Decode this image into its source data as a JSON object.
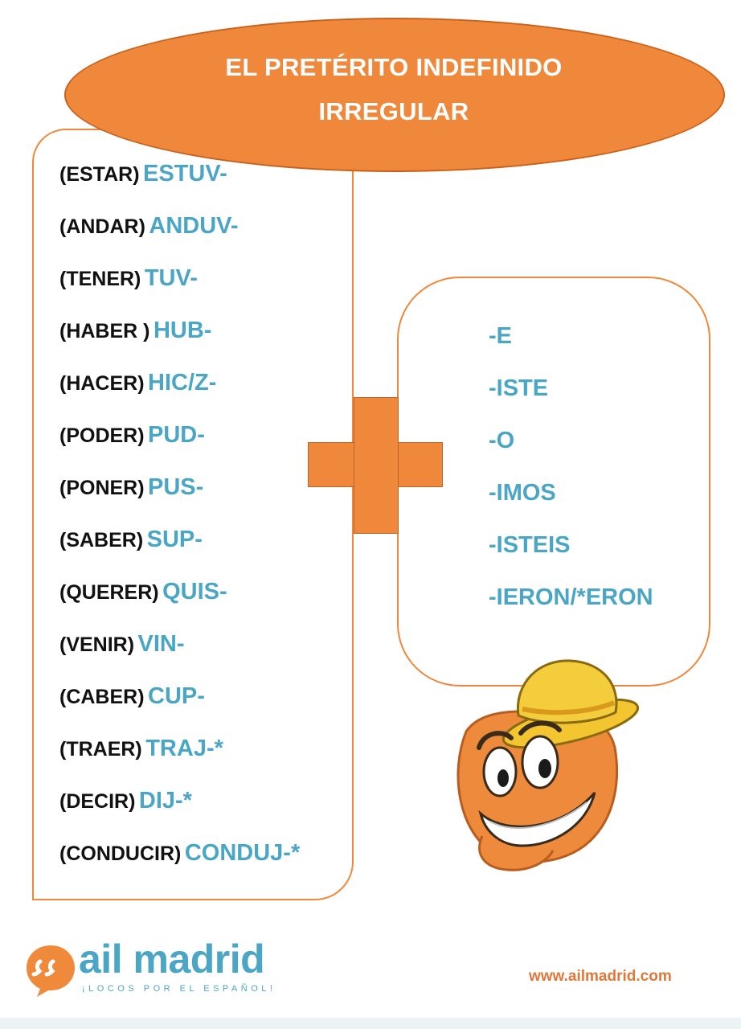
{
  "title": {
    "line1": "EL PRETÉRITO INDEFINIDO",
    "line2": "IRREGULAR"
  },
  "verbs": [
    {
      "infinitive": "(ESTAR)",
      "stem": "ESTUV-"
    },
    {
      "infinitive": "(ANDAR)",
      "stem": "ANDUV-"
    },
    {
      "infinitive": "(TENER)",
      "stem": "TUV-"
    },
    {
      "infinitive": "(HABER )",
      "stem": "HUB-"
    },
    {
      "infinitive": "(HACER)",
      "stem": "HIC/Z-"
    },
    {
      "infinitive": "(PODER)",
      "stem": "PUD-"
    },
    {
      "infinitive": "(PONER)",
      "stem": "PUS-"
    },
    {
      "infinitive": "(SABER)",
      "stem": "SUP-"
    },
    {
      "infinitive": "(QUERER)",
      "stem": "QUIS-"
    },
    {
      "infinitive": "(VENIR)",
      "stem": "VIN-"
    },
    {
      "infinitive": "(CABER)",
      "stem": "CUP-"
    },
    {
      "infinitive": "(TRAER)",
      "stem": "TRAJ-*"
    },
    {
      "infinitive": "(DECIR)",
      "stem": "DIJ-*"
    },
    {
      "infinitive": "(CONDUCIR)",
      "stem": "CONDUJ-*"
    }
  ],
  "endings": [
    "-E",
    "-ISTE",
    "-O",
    "-IMOS",
    "-ISTEIS",
    "-IERON/*ERON"
  ],
  "icons": {
    "plus": "plus-icon",
    "mascot": "mascot-illustration",
    "logo": "speech-bubble-logo-icon"
  },
  "footer": {
    "brand": "ail madrid",
    "tagline": "¡LOCOS POR EL ESPAÑOL!",
    "website": "www.ailmadrid.com"
  },
  "colors": {
    "accent": "#f0883c",
    "stem": "#4aa6c4",
    "text": "#111111",
    "website": "#e0783a"
  }
}
